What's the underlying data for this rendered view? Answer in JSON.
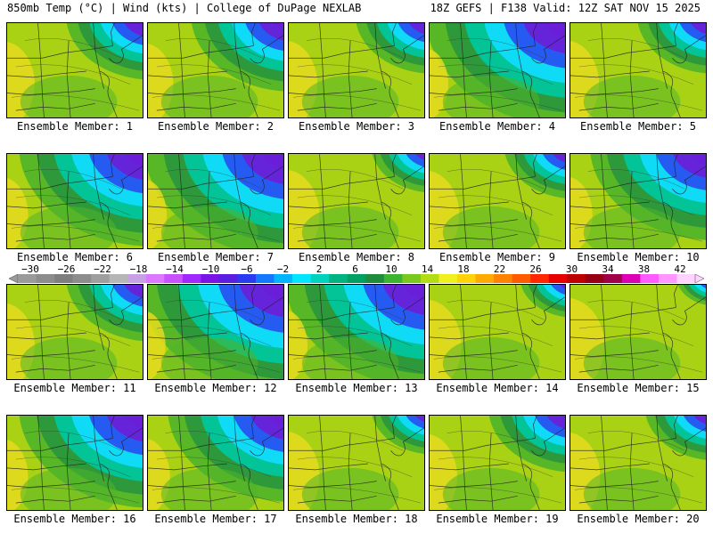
{
  "header": {
    "left": "850mb Temp (°C) | Wind (kts) | College of DuPage NEXLAB",
    "right": "18Z GEFS | F138 Valid: 12Z SAT NOV 15 2025"
  },
  "members": [
    {
      "label": "Ensemble Member: 1",
      "cold": 0.55
    },
    {
      "label": "Ensemble Member: 2",
      "cold": 0.65
    },
    {
      "label": "Ensemble Member: 3",
      "cold": 0.5
    },
    {
      "label": "Ensemble Member: 4",
      "cold": 0.95
    },
    {
      "label": "Ensemble Member: 5",
      "cold": 0.5
    },
    {
      "label": "Ensemble Member: 6",
      "cold": 0.85
    },
    {
      "label": "Ensemble Member: 7",
      "cold": 0.95
    },
    {
      "label": "Ensemble Member: 8",
      "cold": 0.4
    },
    {
      "label": "Ensemble Member: 9",
      "cold": 0.45
    },
    {
      "label": "Ensemble Member: 10",
      "cold": 0.8
    },
    {
      "label": "Ensemble Member: 11",
      "cold": 0.55
    },
    {
      "label": "Ensemble Member: 12",
      "cold": 1.0
    },
    {
      "label": "Ensemble Member: 13",
      "cold": 0.95
    },
    {
      "label": "Ensemble Member: 14",
      "cold": 0.35
    },
    {
      "label": "Ensemble Member: 15",
      "cold": 0.25
    },
    {
      "label": "Ensemble Member: 16",
      "cold": 0.85
    },
    {
      "label": "Ensemble Member: 17",
      "cold": 0.8
    },
    {
      "label": "Ensemble Member: 18",
      "cold": 0.4
    },
    {
      "label": "Ensemble Member: 19",
      "cold": 0.55
    },
    {
      "label": "Ensemble Member: 20",
      "cold": 0.45
    }
  ],
  "colorbar": {
    "tick_labels": [
      "−30",
      "−26",
      "−22",
      "−18",
      "−14",
      "−10",
      "−6",
      "−2",
      "2",
      "6",
      "10",
      "14",
      "18",
      "22",
      "26",
      "30",
      "34",
      "38",
      "42"
    ],
    "colors": [
      "#9a9a9a",
      "#8c8c8c",
      "#7e7e7e",
      "#8c8c8c",
      "#9e9e9e",
      "#b6b6b6",
      "#c8a0e6",
      "#dc78ff",
      "#c850ff",
      "#a028ff",
      "#7a14e6",
      "#5a1ee0",
      "#2a3cf0",
      "#1478ff",
      "#00b4ff",
      "#00e6ff",
      "#00d2be",
      "#00b482",
      "#00a064",
      "#1e8c3c",
      "#3cb432",
      "#78c81e",
      "#b4dc14",
      "#f0f01e",
      "#ffd20a",
      "#ffaa00",
      "#ff8200",
      "#ff5a00",
      "#ff2800",
      "#e60000",
      "#be0000",
      "#960014",
      "#a0004a",
      "#dc00b4",
      "#ff5aff",
      "#ff96ff",
      "#ffd2ff"
    ]
  },
  "palette": {
    "warm_yellow": "#e6dc1e",
    "lime": "#aad214",
    "green": "#50b428",
    "dark_green": "#2a963c",
    "teal": "#00c8a0",
    "cyan": "#10dcff",
    "blue": "#2850f0",
    "purple": "#6a1ed8",
    "orange": "#f0aa28"
  }
}
